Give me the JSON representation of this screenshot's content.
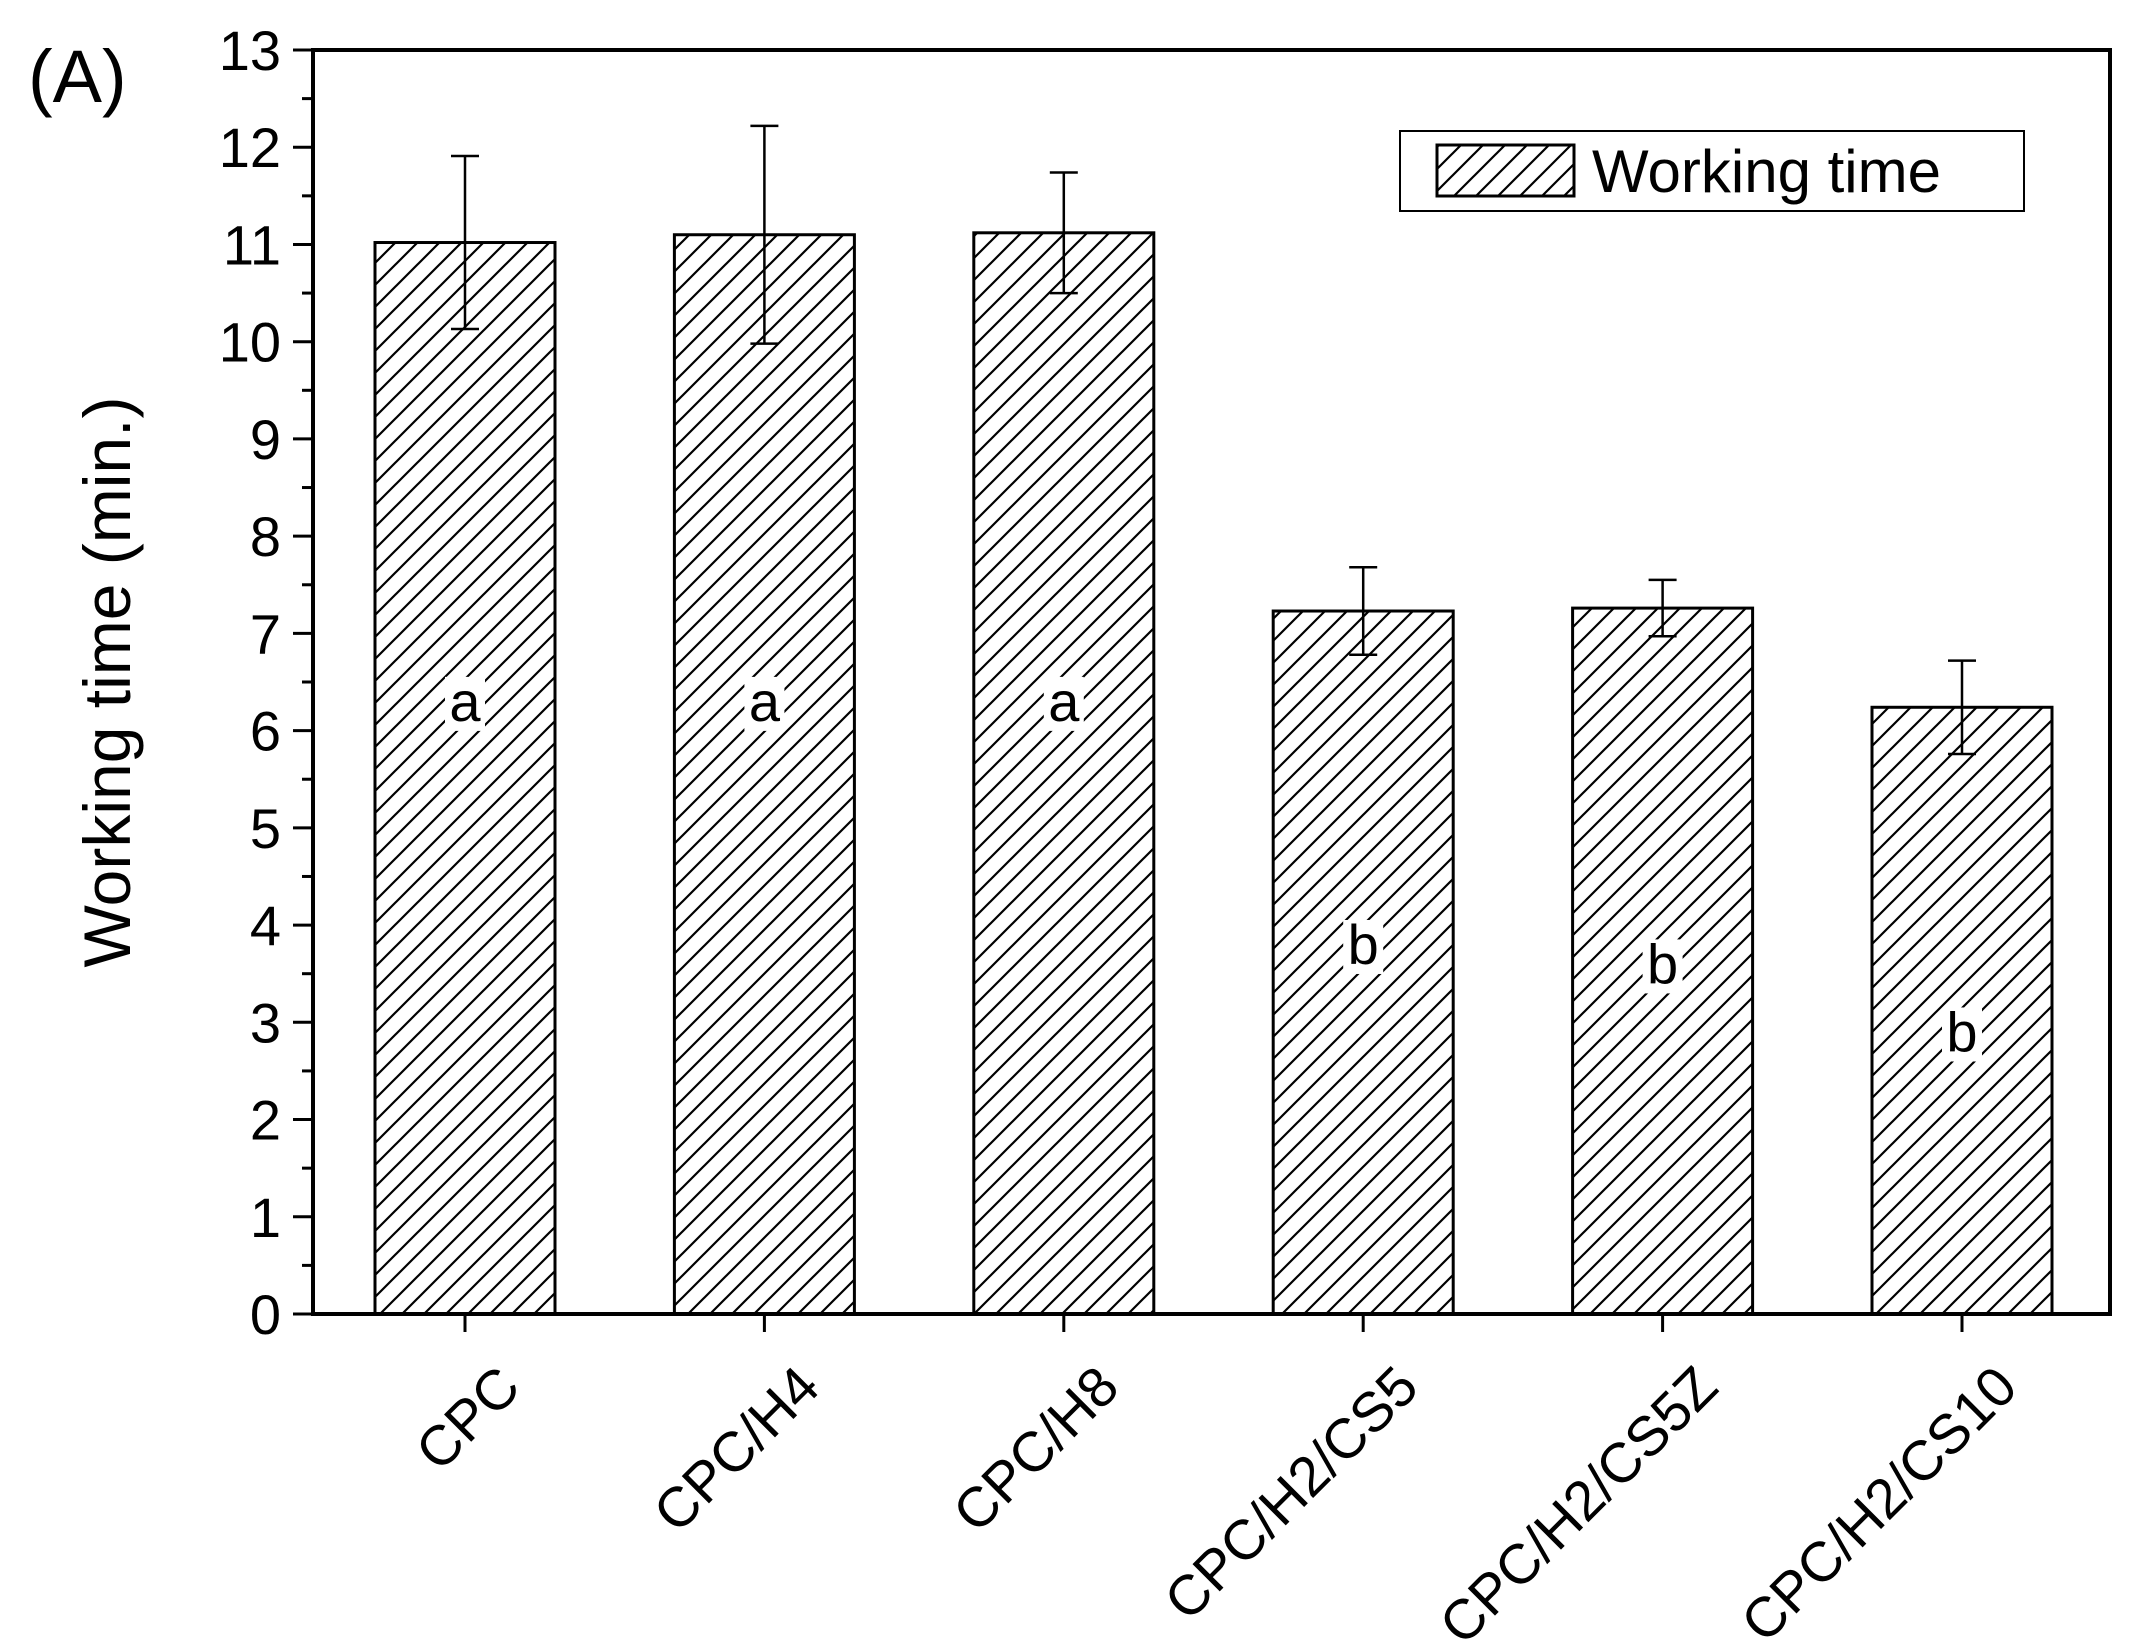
{
  "panel_label": "(A)",
  "chart_data": {
    "type": "bar",
    "title": "",
    "xlabel": "",
    "ylabel": "Working time (min.)",
    "ylim": [
      0,
      13
    ],
    "yticks": [
      "0",
      "1",
      "2",
      "3",
      "4",
      "5",
      "6",
      "7",
      "8",
      "9",
      "10",
      "11",
      "12",
      "13"
    ],
    "categories": [
      "CPC",
      "CPC/H4",
      "CPC/H8",
      "CPC/H2/CS5",
      "CPC/H2/CS5Z",
      "CPC/H2/CS10"
    ],
    "series": [
      {
        "name": "Working time",
        "values": [
          11.02,
          11.1,
          11.12,
          7.23,
          7.26,
          6.24
        ],
        "error": [
          0.89,
          1.12,
          0.62,
          0.45,
          0.29,
          0.48
        ],
        "pattern": "diagonal-hatch"
      }
    ],
    "significance_labels": [
      {
        "category": "CPC",
        "text": "a",
        "y": 6.1
      },
      {
        "category": "CPC/H4",
        "text": "a",
        "y": 6.1
      },
      {
        "category": "CPC/H8",
        "text": "a",
        "y": 6.1
      },
      {
        "category": "CPC/H2/CS5",
        "text": "b",
        "y": 3.6
      },
      {
        "category": "CPC/H2/CS5Z",
        "text": "b",
        "y": 3.4
      },
      {
        "category": "CPC/H2/CS10",
        "text": "b",
        "y": 2.7
      }
    ],
    "grid": false,
    "legend": "top-right",
    "colors": {
      "bar_fill": "#ffffff",
      "bar_stroke": "#000000",
      "hatch": "#000000"
    }
  }
}
